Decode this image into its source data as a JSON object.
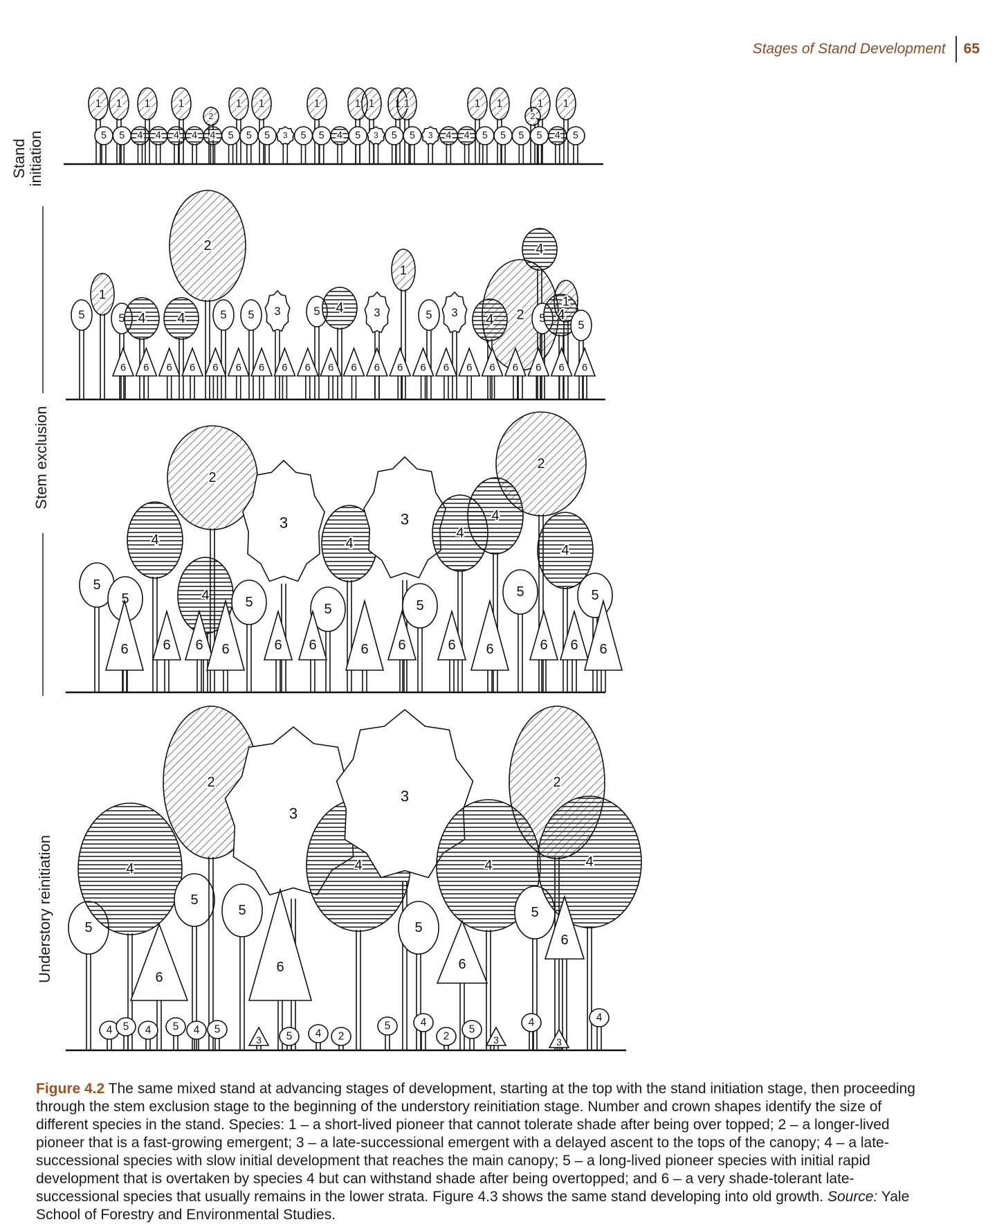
{
  "header": {
    "running_title": "Stages of Stand Development",
    "page_number": "65"
  },
  "figure": {
    "stage_labels": {
      "stand_initiation": [
        "Stand",
        "initiation"
      ],
      "stem_exclusion": "Stem exclusion",
      "understory_reinitiation": "Understory reinitiation"
    },
    "species_numbers": [
      "1",
      "2",
      "3",
      "4",
      "5",
      "6"
    ],
    "rows": {
      "stand_initiation": {
        "tall": [
          "1",
          "1",
          "1",
          "1",
          "1",
          "1",
          "1",
          "1",
          "1",
          "1",
          "1",
          "1",
          "1",
          "1",
          "1",
          "2",
          "2"
        ],
        "mid": [
          "5",
          "5",
          "4",
          "4",
          "4",
          "4",
          "4",
          "5",
          "5",
          "5",
          "3",
          "5",
          "5",
          "4",
          "5",
          "3",
          "5",
          "5",
          "3",
          "4",
          "4",
          "5",
          "5",
          "5",
          "5",
          "4",
          "5"
        ]
      },
      "stem_exclusion_a": {
        "canopy": [
          "5",
          "1",
          "5",
          "4",
          "4",
          "2",
          "5",
          "5",
          "3",
          "5",
          "4",
          "3",
          "1",
          "5",
          "3",
          "4",
          "4",
          "2",
          "5",
          "4",
          "1",
          "5"
        ],
        "under": [
          "6",
          "6",
          "6",
          "6",
          "6",
          "6",
          "6",
          "6",
          "6",
          "6",
          "6",
          "6",
          "6",
          "6",
          "6",
          "6",
          "6",
          "6",
          "6",
          "6",
          "6"
        ]
      },
      "stem_exclusion_b": {
        "canopy": [
          "5",
          "5",
          "4",
          "4",
          "2",
          "5",
          "3",
          "4",
          "5",
          "3",
          "5",
          "4",
          "4",
          "2",
          "5",
          "4",
          "5"
        ],
        "under": [
          "6",
          "6",
          "6",
          "6",
          "6",
          "6",
          "6",
          "6",
          "6",
          "6",
          "6",
          "6",
          "6"
        ]
      },
      "understory_reinitiation": {
        "canopy": [
          "5",
          "4",
          "5",
          "2",
          "5",
          "3",
          "4",
          "3",
          "5",
          "4",
          "5",
          "2",
          "4"
        ],
        "under": [
          "6",
          "6",
          "6",
          "6"
        ],
        "regen": [
          "4",
          "5",
          "4",
          "5",
          "4",
          "5",
          "3",
          "5",
          "4",
          "2",
          "5",
          "4",
          "2",
          "5",
          "3",
          "4",
          "3",
          "4"
        ]
      }
    }
  },
  "caption": {
    "label": "Figure 4.2",
    "text": "The same mixed stand at advancing stages of development, starting at the top with the stand initiation stage, then proceeding through the stem exclusion stage to the beginning of the understory reinitiation stage. Number and crown shapes identify the size of different species in the stand. Species: 1 – a short-lived pioneer that cannot tolerate shade after being over topped; 2 – a longer-lived pioneer that is a fast-growing emergent; 3 – a late-successional emergent with a delayed ascent to the tops of the canopy; 4 – a late-successional species with slow initial development that reaches the main canopy; 5 – a long-lived pioneer species with initial rapid development that is overtaken by species 4 but can withstand shade after being overtopped; and 6 – a very shade-tolerant late-successional species that usually remains in the lower strata. Figure 4.3 shows the same stand developing into old growth.",
    "source_label": "Source:",
    "source_text": "Yale School of Forestry and Environmental Studies."
  }
}
